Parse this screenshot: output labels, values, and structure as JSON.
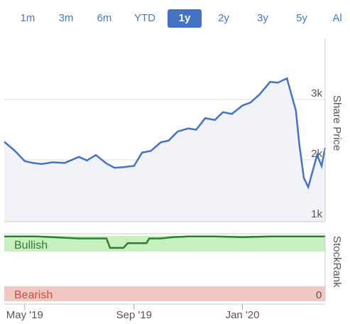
{
  "ranges": [
    "1m",
    "3m",
    "6m",
    "YTD",
    "1y",
    "2y",
    "3y",
    "5y",
    "Al"
  ],
  "active_range": "1y",
  "colors": {
    "line": "#4472c4",
    "area": "#f2f3f9",
    "grid": "#dddddd",
    "rank_line": "#2e7d32",
    "bullish_band": "#c8efc0",
    "bearish_band": "#f1c7c2",
    "bullish_text": "#2e7d32",
    "bearish_text": "#d24a3c"
  },
  "chart_data": [
    {
      "type": "line",
      "xlabel": "",
      "ylabel": "Share Price",
      "x_tick_labels": [
        "May '19",
        "Sep '19",
        "Jan '20"
      ],
      "y_ticks": [
        1000,
        2000,
        3000
      ],
      "y_tick_labels": [
        "1k",
        "2k",
        "3k"
      ],
      "ylim": [
        1000,
        3200
      ],
      "grid": true,
      "series": [
        {
          "x": [
            "2019-04-08",
            "2019-04-20",
            "2019-05-01",
            "2019-05-10",
            "2019-05-20",
            "2019-06-01",
            "2019-06-15",
            "2019-07-01",
            "2019-07-10",
            "2019-07-20",
            "2019-08-01",
            "2019-08-10",
            "2019-08-20",
            "2019-09-01",
            "2019-09-10",
            "2019-09-20",
            "2019-10-01",
            "2019-10-10",
            "2019-10-20",
            "2019-11-01",
            "2019-11-10",
            "2019-11-20",
            "2019-12-01",
            "2019-12-10",
            "2019-12-20",
            "2020-01-01",
            "2020-01-10",
            "2020-01-20",
            "2020-02-01",
            "2020-02-10",
            "2020-02-20",
            "2020-03-01",
            "2020-03-05",
            "2020-03-10",
            "2020-03-15",
            "2020-03-20",
            "2020-03-25",
            "2020-03-30",
            "2020-04-03"
          ],
          "values": [
            2300,
            2150,
            1980,
            1950,
            1930,
            1960,
            1950,
            2050,
            1990,
            2080,
            1940,
            1870,
            1880,
            1900,
            2120,
            2150,
            2290,
            2320,
            2470,
            2520,
            2500,
            2690,
            2660,
            2790,
            2760,
            2900,
            2950,
            3080,
            3290,
            3280,
            3350,
            2820,
            2250,
            1700,
            1550,
            1820,
            2080,
            1900,
            2200
          ]
        }
      ]
    },
    {
      "type": "line",
      "ylabel": "StockRank",
      "y_tick_labels": [
        "0"
      ],
      "zones": [
        "Bullish",
        "Bearish"
      ],
      "series": [
        {
          "x": [
            "2019-04-08",
            "2019-05-15",
            "2019-06-01",
            "2019-07-01",
            "2019-08-01",
            "2019-08-05",
            "2019-08-20",
            "2019-08-25",
            "2019-09-15",
            "2019-09-18",
            "2019-10-01",
            "2019-10-15",
            "2019-11-01",
            "2019-12-01",
            "2020-01-01",
            "2020-02-01",
            "2020-03-01",
            "2020-04-03"
          ],
          "values": [
            96,
            96,
            95,
            93,
            93,
            79,
            79,
            86,
            86,
            93,
            93,
            95,
            96,
            96,
            95,
            96,
            96,
            96
          ]
        }
      ]
    }
  ]
}
